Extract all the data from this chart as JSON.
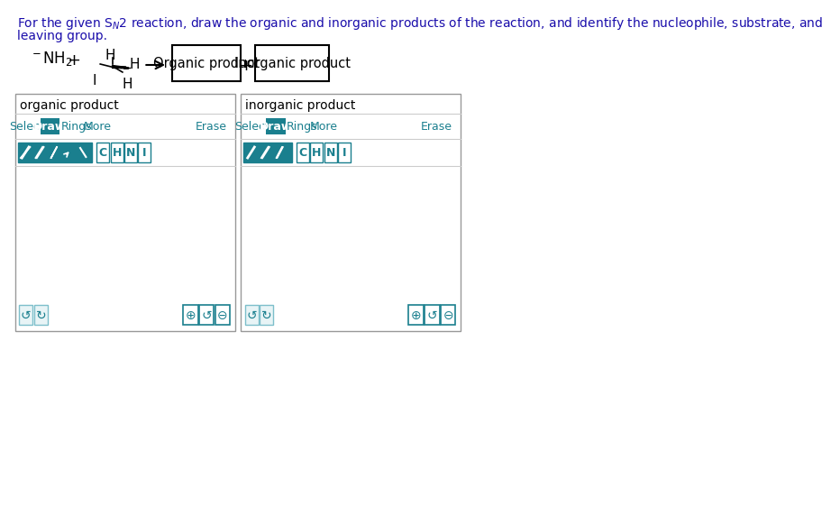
{
  "bg_color": "#ffffff",
  "title_text": "For the given Sₙ2 reaction, draw the organic and inorganic products of the reaction, and identify the nucleophile, substrate, and\nleaving group.",
  "title_color": "#1a0dab",
  "title_fontsize": 10.5,
  "panel_color": "#ffffff",
  "panel_border_color": "#999999",
  "teal_color": "#1a7f8e",
  "teal_dark": "#167080",
  "btn_text_color": "#ffffff",
  "btn_border_color": "#1a7f8e",
  "light_btn_bg": "#e8f4f6",
  "light_btn_border": "#7dbfcb",
  "toolbar_line_color": "#cccccc",
  "text_color": "#333333",
  "nh2_text": "⁻NH₂",
  "plus_text": "+",
  "organic_label": "Organic product",
  "inorganic_label": "Inorganic product",
  "organic_panel_title": "organic product",
  "inorganic_panel_title": "inorganic product",
  "select_text": "Select",
  "draw_text": "Draw",
  "rings_text": "Rings",
  "more_text": "More",
  "erase_text": "Erase",
  "atom_buttons": [
    "C",
    "H",
    "N",
    "I"
  ],
  "zoom_plus": "⊕",
  "zoom_reset": "↺",
  "zoom_minus": "⊖"
}
